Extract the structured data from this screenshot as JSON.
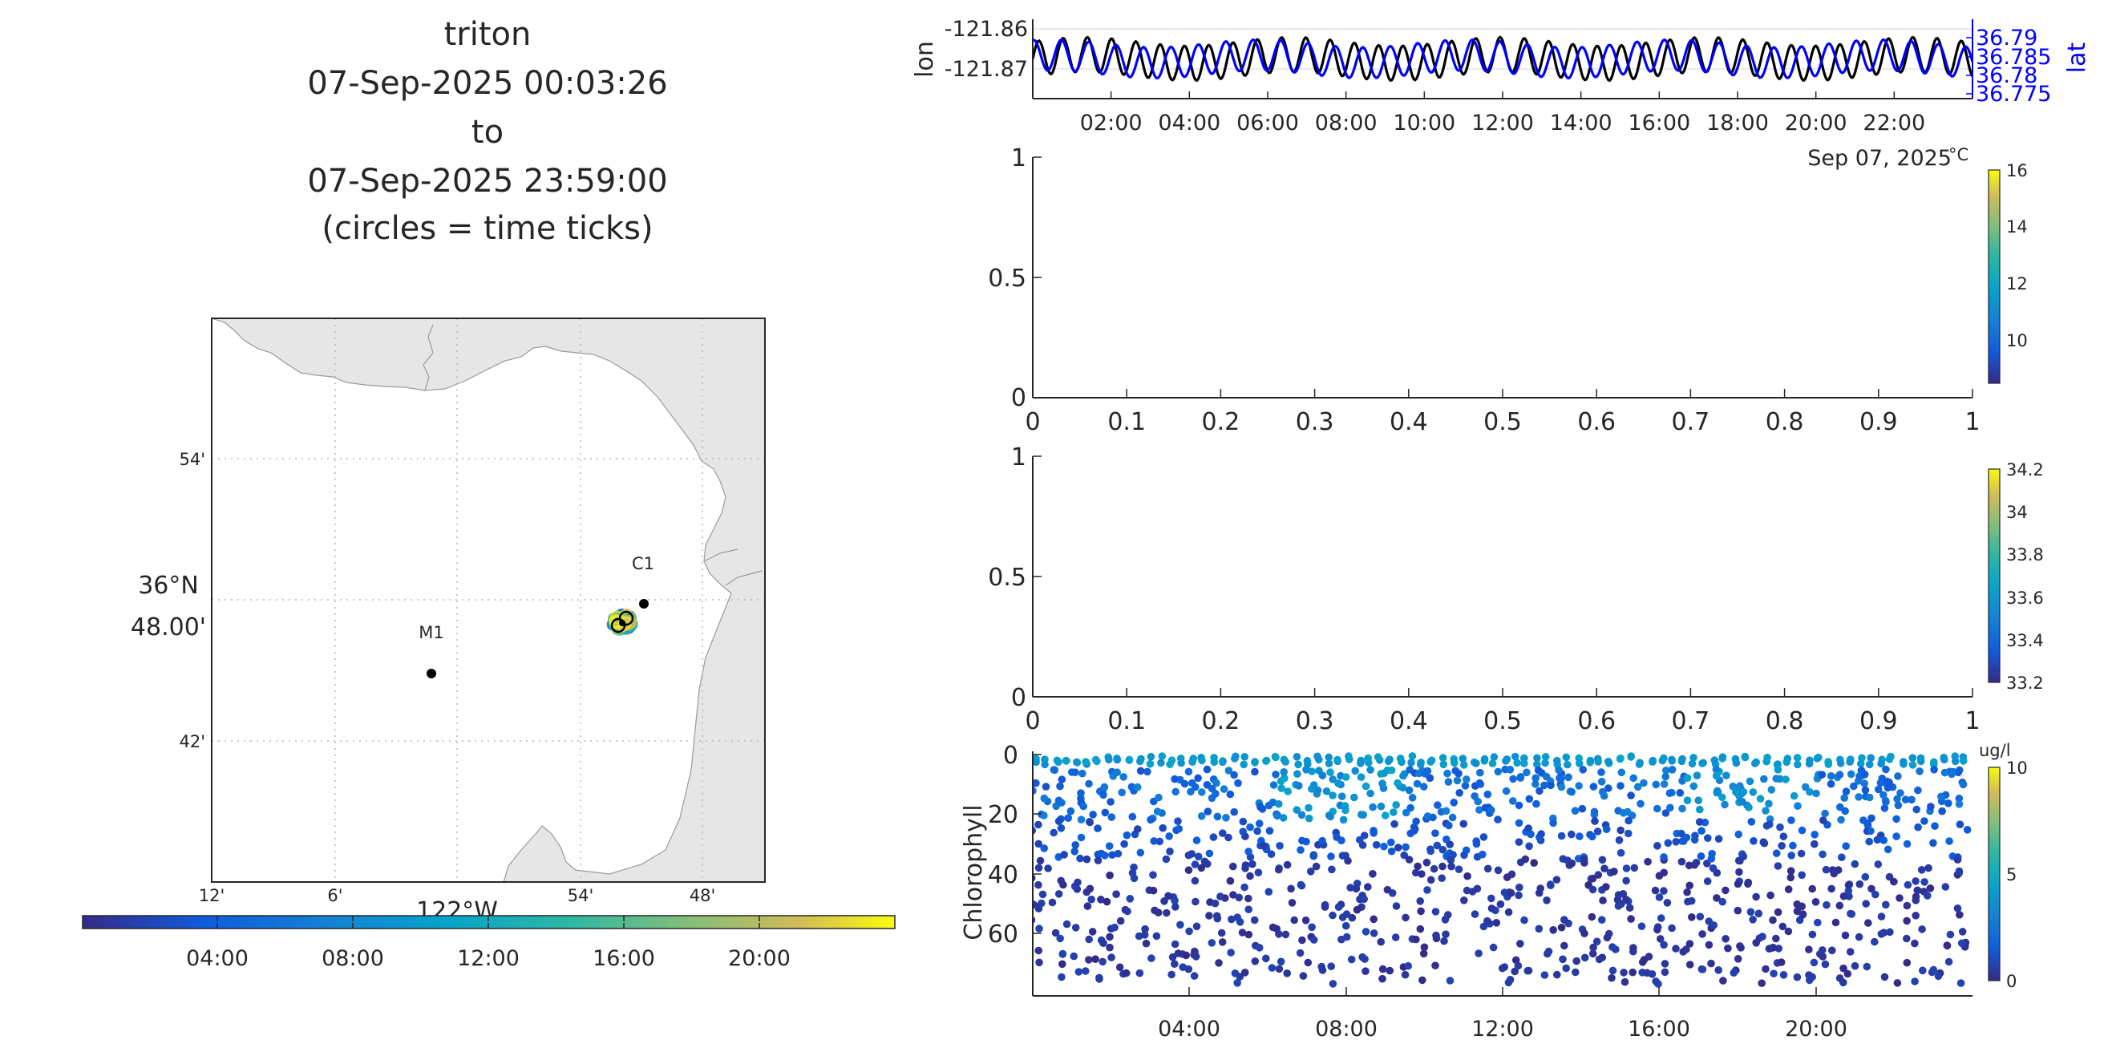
{
  "header": {
    "title_lines": [
      "triton",
      "07-Sep-2025 00:03:26",
      "to",
      "07-Sep-2025 23:59:00",
      "(circles = time ticks)"
    ]
  },
  "map": {
    "lat_ticks": [
      "54'",
      "42'"
    ],
    "lat_center_label": [
      "36°N",
      "48.00'"
    ],
    "lon_ticks": [
      "12'",
      "6'",
      "54'",
      "48'"
    ],
    "lon_center_label": "122°W",
    "stations": [
      {
        "label": "C1",
        "lon": -121.845,
        "lat": 36.797
      },
      {
        "label": "M1",
        "lon": -122.03,
        "lat": 36.747
      }
    ],
    "track_center": {
      "lon": -121.868,
      "lat": 36.783
    },
    "land_color": "#e6e6e6",
    "grid_style": "dotted"
  },
  "time_colorbar": {
    "ticks": [
      "04:00",
      "08:00",
      "12:00",
      "16:00",
      "20:00"
    ],
    "colormap": "parula"
  },
  "chart_data": [
    {
      "type": "line",
      "title": "",
      "xlabel": "Sep 07, 2025",
      "ylabel": "lon",
      "y2label": "lat",
      "x_ticks": [
        "02:00",
        "04:00",
        "06:00",
        "08:00",
        "10:00",
        "12:00",
        "14:00",
        "16:00",
        "18:00",
        "20:00",
        "22:00"
      ],
      "y_ticks": [
        "-121.86",
        "-121.87"
      ],
      "y2_ticks": [
        "36.79",
        "36.785",
        "36.78",
        "36.775"
      ],
      "xlim_hours": [
        0,
        24
      ],
      "ylim": [
        -121.8745,
        -121.8585
      ],
      "y2lim": [
        36.7735,
        36.7915
      ],
      "series": [
        {
          "name": "lon",
          "color": "#000000",
          "axis": "left",
          "mean": -121.8665,
          "amp": 0.0035,
          "period_h": 0.62
        },
        {
          "name": "lat",
          "color": "#0000ff",
          "axis": "right",
          "mean": 36.7825,
          "amp": 0.0035,
          "period_h": 0.7
        }
      ]
    },
    {
      "type": "scatter",
      "title": "",
      "xlim": [
        0,
        1
      ],
      "ylim": [
        0,
        1
      ],
      "x_ticks": [
        "0",
        "0.1",
        "0.2",
        "0.3",
        "0.4",
        "0.5",
        "0.6",
        "0.7",
        "0.8",
        "0.9",
        "1"
      ],
      "y_ticks": [
        "0",
        "0.5",
        "1"
      ],
      "points": [],
      "colorbar": {
        "unit": "°C",
        "min": 8.5,
        "max": 16,
        "ticks": [
          "10",
          "12",
          "14",
          "16"
        ]
      }
    },
    {
      "type": "scatter",
      "title": "",
      "xlim": [
        0,
        1
      ],
      "ylim": [
        0,
        1
      ],
      "x_ticks": [
        "0",
        "0.1",
        "0.2",
        "0.3",
        "0.4",
        "0.5",
        "0.6",
        "0.7",
        "0.8",
        "0.9",
        "1"
      ],
      "y_ticks": [
        "0",
        "0.5",
        "1"
      ],
      "points": [],
      "colorbar": {
        "unit": "",
        "min": 33.2,
        "max": 34.2,
        "ticks": [
          "33.2",
          "33.4",
          "33.6",
          "33.8",
          "34",
          "34.2"
        ]
      }
    },
    {
      "type": "scatter",
      "title": "",
      "ylabel": "Chlorophyll",
      "xlim_hours": [
        0,
        24
      ],
      "ylim": [
        0,
        80
      ],
      "y_reversed": true,
      "x_ticks": [
        "04:00",
        "08:00",
        "12:00",
        "16:00",
        "20:00"
      ],
      "y_ticks": [
        "0",
        "20",
        "40",
        "60"
      ],
      "colorbar": {
        "unit": "ug/l",
        "min": 0,
        "max": 10,
        "ticks": [
          "0",
          "5",
          "10"
        ]
      },
      "profiles": {
        "count": 90,
        "depth_min_m": 0,
        "depth_max_m": 80,
        "surface_range": [
          0.5,
          3.5
        ],
        "bloom_windows_h": [
          [
            6.2,
            9.6
          ],
          [
            16.8,
            20.2
          ]
        ]
      }
    }
  ]
}
